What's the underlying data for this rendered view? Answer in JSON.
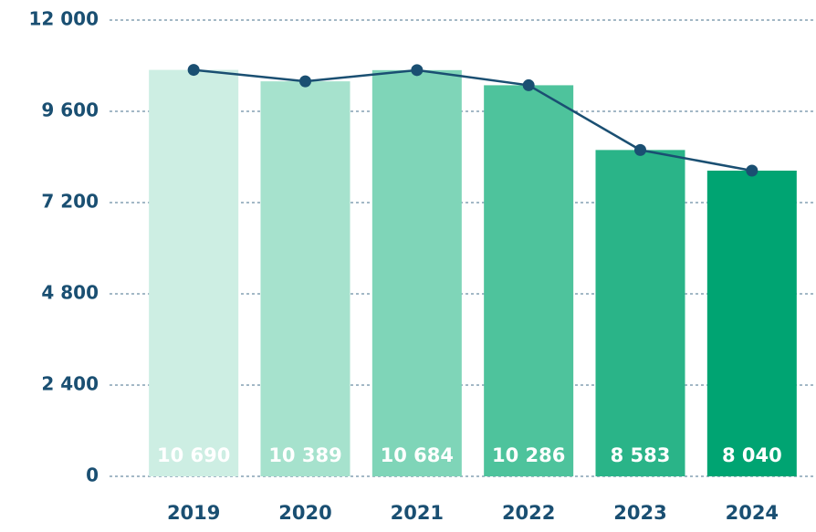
{
  "chart_data": {
    "type": "bar",
    "categories": [
      "2019",
      "2020",
      "2021",
      "2022",
      "2023",
      "2024"
    ],
    "values": [
      10690,
      10389,
      10684,
      10286,
      8583,
      8040
    ],
    "value_labels": [
      "10 690",
      "10 389",
      "10 684",
      "10 286",
      "8 583",
      "8 040"
    ],
    "colors": [
      "#cdeee3",
      "#a6e2cd",
      "#7fd5b8",
      "#4ec39c",
      "#2ab488",
      "#00a472"
    ],
    "line_color": "#1a4f72",
    "ylim": [
      0,
      12000
    ],
    "yticks": [
      {
        "value": 0,
        "label": "0"
      },
      {
        "value": 2400,
        "label": "2 400"
      },
      {
        "value": 4800,
        "label": "4 800"
      },
      {
        "value": 7200,
        "label": "7 200"
      },
      {
        "value": 9600,
        "label": "9 600"
      },
      {
        "value": 12000,
        "label": "12 000"
      }
    ],
    "grid": true
  }
}
